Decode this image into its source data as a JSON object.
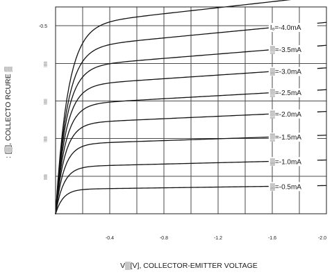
{
  "chart_data": {
    "type": "line",
    "xlabel": "V▒[V], COLLECTOR-EMITTER VOLTAGE",
    "ylabel": ": [▒], COLLECTO RCURE ▒",
    "xlim": [
      0,
      2.0
    ],
    "ylim": [
      0,
      0.55
    ],
    "xticks": [
      {
        "value": 0.4,
        "label": "-0.4"
      },
      {
        "value": 0.8,
        "label": "-0.8"
      },
      {
        "value": 1.2,
        "label": "-1.2"
      },
      {
        "value": 1.6,
        "label": "-1.6"
      },
      {
        "value": 2.0,
        "label": "-2.0"
      }
    ],
    "yticks": [
      {
        "value": 0.5,
        "label": "-0.5"
      },
      {
        "value": 0.4,
        "label": "▒"
      },
      {
        "value": 0.3,
        "label": "▒"
      },
      {
        "value": 0.2,
        "label": "▒"
      },
      {
        "value": 0.1,
        "label": "▒"
      }
    ],
    "grid": true,
    "series": [
      {
        "name": "",
        "sat": 0.5,
        "slope": 0.04,
        "knee": 0.09
      },
      {
        "name": "Iₒ=-4.0mA",
        "sat": 0.44,
        "slope": 0.0345,
        "knee": 0.085
      },
      {
        "name": "▒=-3.5mA",
        "sat": 0.39,
        "slope": 0.029,
        "knee": 0.08
      },
      {
        "name": "▒=-3.0mA",
        "sat": 0.34,
        "slope": 0.024,
        "knee": 0.076
      },
      {
        "name": "▒=-2.5mA",
        "sat": 0.29,
        "slope": 0.02,
        "knee": 0.072
      },
      {
        "name": "▒=-2.0mA",
        "sat": 0.24,
        "slope": 0.016,
        "knee": 0.068
      },
      {
        "name": "▒=-1.5mA",
        "sat": 0.185,
        "slope": 0.012,
        "knee": 0.064
      },
      {
        "name": "▒=-1.0mA",
        "sat": 0.125,
        "slope": 0.009,
        "knee": 0.06
      },
      {
        "name": "▒=-0.5mA",
        "sat": 0.065,
        "slope": 0.005,
        "knee": 0.056
      }
    ]
  }
}
